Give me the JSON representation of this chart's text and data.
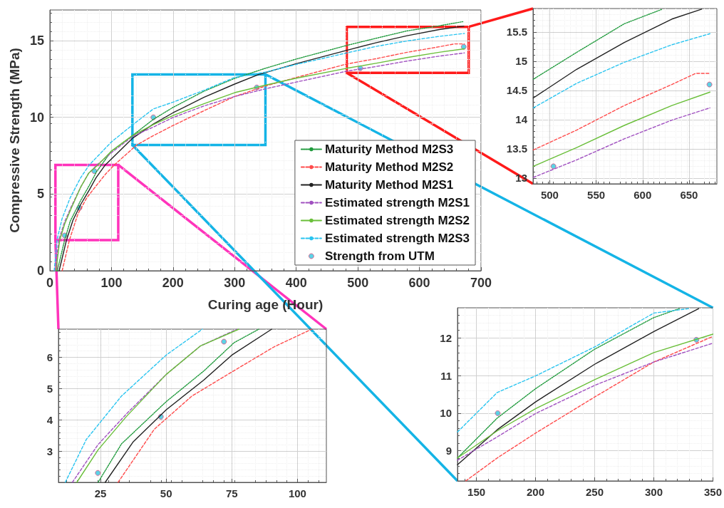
{
  "chart_data": [
    {
      "type": "line",
      "xlabel": "Curing age (Hour)",
      "ylabel": "Compressive Strength (MPa)",
      "xlim": [
        0,
        700
      ],
      "xticks": [
        0,
        100,
        200,
        300,
        400,
        500,
        600,
        700
      ],
      "ylim": [
        0,
        17
      ],
      "yticks": [
        0,
        5,
        10,
        15
      ],
      "grid": true,
      "legend": "bottom right",
      "series": [
        {
          "name": "Maturity Method M2S3",
          "color": "#1f9a3c",
          "line_style": "dotted",
          "x": [
            12,
            24,
            33,
            50,
            64,
            76,
            100,
            134,
            168,
            200,
            250,
            300,
            350,
            400,
            482,
            529,
            580,
            621,
            672
          ],
          "values": [
            0,
            2,
            3.23,
            4.58,
            5.56,
            6.47,
            7.8,
            8.81,
            9.87,
            10.65,
            11.7,
            12.54,
            13.2,
            13.8,
            14.69,
            15.15,
            15.64,
            15.89,
            16.25
          ]
        },
        {
          "name": "Maturity Method M2S2",
          "color": "#ff4b4b",
          "line_style": "dashed",
          "x": [
            20,
            31.7,
            45.5,
            60,
            75,
            91,
            105,
            141,
            168,
            200,
            250,
            300,
            350,
            400,
            482,
            529,
            580,
            632,
            657,
            673
          ],
          "values": [
            0,
            2,
            3.7,
            4.76,
            5.53,
            6.33,
            6.91,
            8.2,
            8.81,
            9.47,
            10.43,
            11.36,
            12.04,
            12.6,
            13.48,
            13.82,
            14.24,
            14.6,
            14.79,
            14.79
          ]
        },
        {
          "name": "Maturity Method M2S1",
          "color": "#222222",
          "line_style": "solid",
          "x": [
            15,
            27,
            37.5,
            50,
            64,
            75,
            90,
            134,
            168,
            200,
            250,
            300,
            338,
            400,
            482,
            529,
            580,
            632,
            672
          ],
          "values": [
            0,
            2,
            3.3,
            4.32,
            5.27,
            6.07,
            6.9,
            8.63,
            9.56,
            10.3,
            11.3,
            12.17,
            12.78,
            13.5,
            14.37,
            14.86,
            15.32,
            15.72,
            15.95
          ]
        },
        {
          "name": "Estimated strength M2S1",
          "color": "#a050c0",
          "line_style": "dashed",
          "x": [
            9,
            14.3,
            24,
            35,
            50,
            63,
            78,
            100,
            134,
            168,
            200,
            250,
            300,
            350,
            400,
            482,
            529,
            580,
            632,
            673
          ],
          "values": [
            0,
            2,
            3.2,
            4.2,
            5.45,
            6.36,
            6.95,
            7.7,
            8.75,
            9.37,
            9.99,
            10.74,
            11.36,
            11.86,
            12.3,
            13.01,
            13.31,
            13.67,
            13.99,
            14.2
          ]
        },
        {
          "name": "Estimated strength M2S2",
          "color": "#6abf3a",
          "line_style": "solid",
          "x": [
            10,
            16,
            24,
            35,
            50,
            63,
            78,
            100,
            134,
            168,
            200,
            250,
            300,
            350,
            400,
            482,
            529,
            580,
            632,
            673
          ],
          "values": [
            0,
            2,
            3.04,
            4.1,
            5.45,
            6.36,
            6.9,
            7.8,
            8.81,
            9.53,
            10.12,
            10.89,
            11.61,
            12.1,
            12.55,
            13.2,
            13.52,
            13.9,
            14.24,
            14.47
          ]
        },
        {
          "name": "Estimated strength M2S3",
          "color": "#29c4f0",
          "line_style": "dashed",
          "x": [
            7,
            11.6,
            19.6,
            33,
            50,
            64,
            100,
            134,
            168,
            200,
            250,
            300,
            350,
            400,
            482,
            529,
            580,
            632,
            673
          ],
          "values": [
            0,
            2,
            3.37,
            4.76,
            6.07,
            6.9,
            8.4,
            9.5,
            10.55,
            10.99,
            11.76,
            12.6,
            12.95,
            13.45,
            14.2,
            14.62,
            14.98,
            15.28,
            15.47
          ]
        },
        {
          "name": "Strength from UTM",
          "type": "scatter",
          "marker": "circle",
          "color": "#33c8e0",
          "x": [
            24,
            48,
            72,
            168,
            336,
            504,
            672
          ],
          "values": [
            2.3,
            4.1,
            6.5,
            10,
            11.95,
            13.2,
            14.6
          ]
        }
      ]
    },
    {
      "type": "line",
      "xlim": [
        482,
        680
      ],
      "xticks": [
        500,
        550,
        600,
        650
      ],
      "ylim": [
        12.9,
        15.9
      ],
      "yticks": [
        13,
        13.5,
        14,
        14.5,
        15,
        15.5
      ],
      "grid": true,
      "series": [
        {
          "color": "#1f9a3c",
          "line_style": "dotted",
          "x": [
            482.3,
            529,
            580.3,
            621.3
          ],
          "values": [
            14.69,
            15.15,
            15.64,
            15.89
          ]
        },
        {
          "color": "#ff4b4b",
          "line_style": "dashed",
          "x": [
            482.3,
            529,
            580.3,
            631.5,
            657.2,
            672.6
          ],
          "values": [
            13.48,
            13.82,
            14.24,
            14.6,
            14.79,
            14.79
          ]
        },
        {
          "color": "#222222",
          "line_style": "solid",
          "x": [
            482.3,
            529,
            580.3,
            631.5,
            663.6
          ],
          "values": [
            14.37,
            14.86,
            15.32,
            15.72,
            15.89
          ]
        },
        {
          "color": "#a050c0",
          "line_style": "dashed",
          "x": [
            482.3,
            529,
            580.3,
            631.5,
            672.6
          ],
          "values": [
            13.01,
            13.31,
            13.67,
            13.99,
            14.2
          ]
        },
        {
          "color": "#6abf3a",
          "line_style": "solid",
          "x": [
            482.3,
            529,
            580.3,
            631.5,
            672.6
          ],
          "values": [
            13.2,
            13.52,
            13.9,
            14.24,
            14.47
          ]
        },
        {
          "color": "#29c4f0",
          "line_style": "dashed",
          "x": [
            482.3,
            529,
            580.3,
            631.5,
            672.6
          ],
          "values": [
            14.2,
            14.62,
            14.98,
            15.28,
            15.47
          ]
        },
        {
          "type": "scatter",
          "marker": "circle",
          "color": "#33c8e0",
          "x": [
            504,
            672
          ],
          "values": [
            13.2,
            14.6
          ]
        }
      ]
    },
    {
      "type": "line",
      "xlim": [
        9,
        111
      ],
      "xticks": [
        25,
        50,
        75,
        100
      ],
      "ylim": [
        2,
        6.9
      ],
      "yticks": [
        3,
        4,
        5,
        6
      ],
      "grid": true,
      "series": [
        {
          "color": "#1f9a3c",
          "line_style": "dotted",
          "x": [
            24.1,
            33,
            50,
            64.3,
            75.9,
            85.3
          ],
          "values": [
            2,
            3.23,
            4.58,
            5.56,
            6.47,
            6.9
          ]
        },
        {
          "color": "#ff4b4b",
          "line_style": "dashed",
          "x": [
            31.7,
            45.5,
            59.8,
            75,
            91,
            105.4
          ],
          "values": [
            2,
            3.7,
            4.76,
            5.53,
            6.33,
            6.9
          ]
        },
        {
          "color": "#222222",
          "line_style": "solid",
          "x": [
            26.8,
            37.5,
            50,
            64.3,
            75,
            90.2
          ],
          "values": [
            2,
            3.3,
            4.32,
            5.27,
            6.07,
            6.9
          ]
        },
        {
          "color": "#a050c0",
          "line_style": "dashed",
          "x": [
            14.3,
            24,
            35,
            50,
            63,
            77
          ],
          "values": [
            2,
            3.2,
            4.2,
            5.45,
            6.36,
            6.9
          ]
        },
        {
          "color": "#6abf3a",
          "line_style": "solid",
          "x": [
            16,
            24.1,
            34.8,
            50,
            63,
            77.7
          ],
          "values": [
            2,
            3.04,
            4.1,
            5.45,
            6.36,
            6.9
          ]
        },
        {
          "color": "#29c4f0",
          "line_style": "dashed",
          "x": [
            11.6,
            19.6,
            33,
            50,
            63.8
          ],
          "values": [
            2,
            3.37,
            4.76,
            6.07,
            6.9
          ]
        },
        {
          "type": "scatter",
          "marker": "circle",
          "color": "#33c8e0",
          "x": [
            24,
            48,
            72
          ],
          "values": [
            2.3,
            4.1,
            6.5
          ]
        }
      ]
    },
    {
      "type": "line",
      "xlim": [
        134,
        350
      ],
      "xticks": [
        150,
        200,
        250,
        300,
        350
      ],
      "ylim": [
        8.2,
        12.8
      ],
      "yticks": [
        9,
        10,
        11,
        12
      ],
      "grid": true,
      "series": [
        {
          "color": "#1f9a3c",
          "line_style": "dotted",
          "x": [
            134,
            167.6,
            200,
            250,
            300,
            321.6
          ],
          "values": [
            8.81,
            9.87,
            10.65,
            11.7,
            12.54,
            12.78
          ]
        },
        {
          "color": "#ff4b4b",
          "line_style": "dashed",
          "x": [
            141,
            167.6,
            200,
            250,
            300,
            350
          ],
          "values": [
            8.2,
            8.81,
            9.47,
            10.43,
            11.36,
            12.04
          ]
        },
        {
          "color": "#222222",
          "line_style": "solid",
          "x": [
            134,
            167.6,
            200,
            250,
            300,
            338
          ],
          "values": [
            8.63,
            9.56,
            10.3,
            11.3,
            12.17,
            12.78
          ]
        },
        {
          "color": "#a050c0",
          "line_style": "dashed",
          "x": [
            134,
            167.6,
            200,
            250,
            300,
            350
          ],
          "values": [
            8.75,
            9.37,
            9.99,
            10.74,
            11.36,
            11.86
          ]
        },
        {
          "color": "#6abf3a",
          "line_style": "solid",
          "x": [
            134,
            167.6,
            200,
            250,
            300,
            350
          ],
          "values": [
            8.81,
            9.53,
            10.12,
            10.89,
            11.61,
            12.1
          ]
        },
        {
          "color": "#29c4f0",
          "line_style": "dashed",
          "x": [
            134,
            167.6,
            200,
            250,
            300,
            330
          ],
          "values": [
            9.5,
            10.55,
            10.99,
            11.76,
            12.66,
            12.78
          ]
        },
        {
          "type": "scatter",
          "marker": "circle",
          "color": "#33c8e0",
          "x": [
            168,
            336
          ],
          "values": [
            10,
            11.95
          ]
        }
      ]
    }
  ]
}
